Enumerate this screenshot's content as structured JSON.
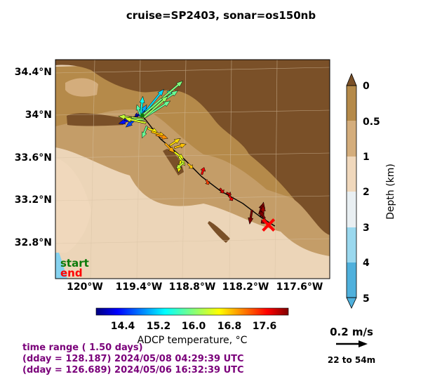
{
  "title": "cruise=SP2403,   sonar=os150nb",
  "chart_data": {
    "type": "map",
    "map_extent": {
      "lon": [
        -120.35,
        -117.35
      ],
      "lat": [
        32.48,
        34.52
      ]
    },
    "lon_ticks": [
      -120.0,
      -119.4,
      -118.8,
      -118.2,
      -117.6
    ],
    "lon_tick_labels": [
      "120°W",
      "119.4°W",
      "118.8°W",
      "118.2°W",
      "117.6°W"
    ],
    "lat_ticks": [
      34.4,
      34.0,
      33.6,
      33.2,
      32.8
    ],
    "lat_tick_labels": [
      "34.4°N",
      "34°N",
      "33.6°N",
      "33.2°N",
      "32.8°N"
    ],
    "depth_colorbar": {
      "label": "Depth (km)",
      "tick_labels": [
        "0",
        "0.5",
        "1",
        "2",
        "3",
        "4",
        "5"
      ],
      "colors": [
        "#7a5028",
        "#b58a4a",
        "#d4ad7c",
        "#f0d8bc",
        "#e9eff2",
        "#9ad8ee",
        "#4fb0dc"
      ]
    },
    "temperature_colorbar": {
      "label": "ADCP temperature, °C",
      "range": [
        14.0,
        18.0
      ],
      "tick_values": [
        14.4,
        15.2,
        16.0,
        16.8,
        17.6
      ],
      "tick_labels": [
        "14.4",
        "15.2",
        "16.0",
        "16.8",
        "17.6"
      ]
    },
    "track": [
      [
        -119.4,
        34.0
      ],
      [
        -119.2,
        33.78
      ],
      [
        -118.95,
        33.6
      ],
      [
        -118.75,
        33.43
      ],
      [
        -118.55,
        33.3
      ],
      [
        -118.3,
        33.18
      ],
      [
        -118.1,
        33.05
      ],
      [
        -117.95,
        32.97
      ]
    ],
    "start_point": [
      -119.4,
      34.0
    ],
    "end_point": [
      -118.02,
      32.98
    ],
    "vectors": [
      {
        "lon": -119.45,
        "lat": 34.0,
        "u": 0.1,
        "v": 0.06,
        "t": 14.3
      },
      {
        "lon": -119.45,
        "lat": 33.99,
        "u": -0.12,
        "v": -0.03,
        "t": 14.4
      },
      {
        "lon": -119.45,
        "lat": 33.98,
        "u": -0.16,
        "v": -0.05,
        "t": 14.5
      },
      {
        "lon": -119.45,
        "lat": 33.98,
        "u": -0.1,
        "v": -0.08,
        "t": 14.7
      },
      {
        "lon": -119.45,
        "lat": 34.0,
        "u": -0.02,
        "v": 0.01,
        "t": 14.2
      },
      {
        "lon": -119.43,
        "lat": 33.99,
        "u": 0.06,
        "v": 0.1,
        "t": 15.1
      },
      {
        "lon": -119.42,
        "lat": 34.0,
        "u": 0.02,
        "v": 0.16,
        "t": 15.5
      },
      {
        "lon": -119.42,
        "lat": 34.0,
        "u": -0.03,
        "v": 0.09,
        "t": 15.8
      },
      {
        "lon": -119.4,
        "lat": 34.0,
        "u": 0.18,
        "v": 0.22,
        "t": 15.3
      },
      {
        "lon": -119.4,
        "lat": 34.0,
        "u": 0.26,
        "v": 0.22,
        "t": 15.6
      },
      {
        "lon": -119.4,
        "lat": 34.01,
        "u": 0.3,
        "v": 0.2,
        "t": 15.9
      },
      {
        "lon": -119.4,
        "lat": 34.0,
        "u": 0.34,
        "v": 0.29,
        "t": 16.0
      },
      {
        "lon": -119.38,
        "lat": 33.98,
        "u": 0.22,
        "v": 0.14,
        "t": 15.9
      },
      {
        "lon": -119.38,
        "lat": 33.98,
        "u": 0.2,
        "v": 0.18,
        "t": 16.1
      },
      {
        "lon": -119.4,
        "lat": 33.97,
        "u": -0.2,
        "v": 0.02,
        "t": 16.3
      },
      {
        "lon": -119.38,
        "lat": 33.96,
        "u": -0.16,
        "v": 0.01,
        "t": 16.1
      },
      {
        "lon": -119.36,
        "lat": 33.93,
        "u": -0.18,
        "v": 0.04,
        "t": 16.4
      },
      {
        "lon": -119.35,
        "lat": 33.9,
        "u": -0.04,
        "v": -0.1,
        "t": 15.9
      },
      {
        "lon": -119.34,
        "lat": 33.88,
        "u": 0.08,
        "v": -0.03,
        "t": 16.6
      },
      {
        "lon": -119.3,
        "lat": 33.85,
        "u": 0.12,
        "v": -0.04,
        "t": 16.8
      },
      {
        "lon": -119.25,
        "lat": 33.82,
        "u": 0.1,
        "v": -0.03,
        "t": 17.0
      },
      {
        "lon": -119.15,
        "lat": 33.74,
        "u": 0.08,
        "v": -0.08,
        "t": 16.9
      },
      {
        "lon": -119.1,
        "lat": 33.72,
        "u": 0.09,
        "v": 0.06,
        "t": 16.7
      },
      {
        "lon": -119.05,
        "lat": 33.7,
        "u": 0.1,
        "v": 0.03,
        "t": 16.8
      },
      {
        "lon": -119.05,
        "lat": 33.66,
        "u": 0.08,
        "v": -0.06,
        "t": 16.5
      },
      {
        "lon": -119.0,
        "lat": 33.62,
        "u": 0.05,
        "v": -0.08,
        "t": 16.4
      },
      {
        "lon": -118.98,
        "lat": 33.58,
        "u": -0.02,
        "v": -0.1,
        "t": 16.6
      },
      {
        "lon": -118.95,
        "lat": 33.56,
        "u": -0.06,
        "v": -0.05,
        "t": 16.3
      },
      {
        "lon": -118.9,
        "lat": 33.55,
        "u": 0.04,
        "v": -0.04,
        "t": 16.8
      },
      {
        "lon": -118.75,
        "lat": 33.45,
        "u": 0.02,
        "v": 0.06,
        "t": 17.6
      },
      {
        "lon": -118.7,
        "lat": 33.4,
        "u": 0.02,
        "v": -0.04,
        "t": 17.3
      },
      {
        "lon": -118.55,
        "lat": 33.32,
        "u": 0.03,
        "v": -0.04,
        "t": 17.7
      },
      {
        "lon": -118.48,
        "lat": 33.28,
        "u": 0.04,
        "v": -0.02,
        "t": 17.8
      },
      {
        "lon": -118.45,
        "lat": 33.25,
        "u": 0.03,
        "v": -0.04,
        "t": 17.6
      },
      {
        "lon": -118.2,
        "lat": 33.12,
        "u": -0.02,
        "v": -0.12,
        "t": 18.0
      },
      {
        "lon": -118.12,
        "lat": 33.08,
        "u": 0.03,
        "v": 0.09,
        "t": 18.0
      },
      {
        "lon": -118.1,
        "lat": 33.06,
        "u": 0.02,
        "v": 0.12,
        "t": 18.0
      },
      {
        "lon": -118.08,
        "lat": 33.05,
        "u": 0.0,
        "v": 0.1,
        "t": 17.9
      },
      {
        "lon": -118.06,
        "lat": 33.04,
        "u": -0.04,
        "v": 0.06,
        "t": 18.0
      },
      {
        "lon": -118.05,
        "lat": 33.03,
        "u": -0.04,
        "v": -0.03,
        "t": 18.0
      }
    ]
  },
  "legend": {
    "start": "start",
    "end": "end",
    "start_color": "#0a7a0a",
    "end_color": "#ff0000"
  },
  "scale": {
    "label": "0.2 m/s",
    "depth_range": "22 to 54m"
  },
  "time": {
    "range": "time range ( 1.50 days)",
    "start": "(dday = 128.187) 2024/05/08 04:29:39 UTC",
    "end": "(dday = 126.689) 2024/05/06 16:32:39 UTC"
  }
}
